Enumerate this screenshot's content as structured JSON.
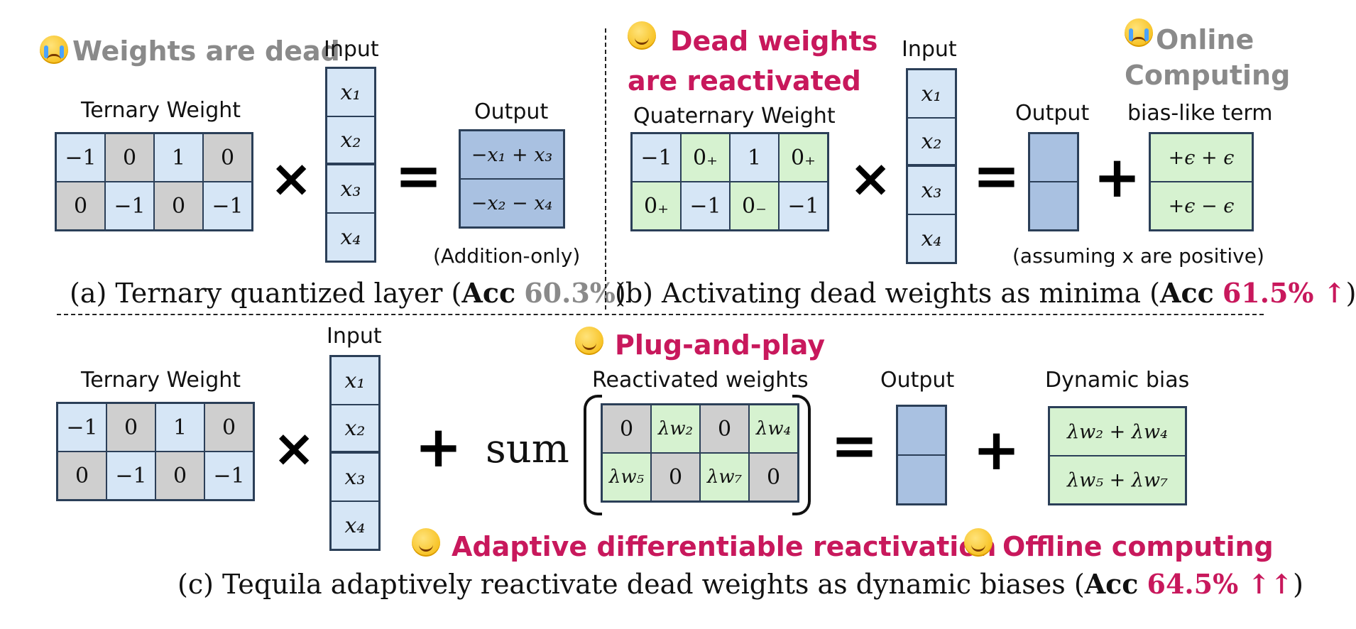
{
  "panel_a": {
    "headline": "Weights are dead",
    "emoji": "crying-face",
    "weight_label": "Ternary Weight",
    "weights": [
      "−1",
      "0",
      "1",
      "0",
      "0",
      "−1",
      "0",
      "−1"
    ],
    "input_label": "Input",
    "inputs": [
      "x₁",
      "x₂",
      "x₃",
      "x₄"
    ],
    "output_label": "Output",
    "outputs": [
      "−x₁ + x₃",
      "−x₂ − x₄"
    ],
    "note": "(Addition-only)",
    "caption_pre": "(a) Ternary quantized layer (",
    "caption_acc": "Acc",
    "caption_val": "60.3%",
    "caption_post": ")"
  },
  "panel_b": {
    "headline_line1": "Dead weights",
    "headline_line2": "are reactivated",
    "emoji": "smiling-face",
    "side_headline_line1": "Online",
    "side_headline_line2": "Computing",
    "side_emoji": "crying-face",
    "weight_label": "Quaternary Weight",
    "weights": [
      "−1",
      "0₊",
      "1",
      "0₊",
      "0₊",
      "−1",
      "0₋",
      "−1"
    ],
    "input_label": "Input",
    "inputs": [
      "x₁",
      "x₂",
      "x₃",
      "x₄"
    ],
    "output_label": "Output",
    "bias_label": "bias-like term",
    "bias_terms": [
      "+ϵ + ϵ",
      "+ϵ − ϵ"
    ],
    "note": "(assuming x are positive)",
    "caption_pre": "(b) Activating dead weights as minima (",
    "caption_acc": "Acc",
    "caption_val": "61.5% ↑",
    "caption_post": ")"
  },
  "panel_c": {
    "weight_label": "Ternary Weight",
    "weights": [
      "−1",
      "0",
      "1",
      "0",
      "0",
      "−1",
      "0",
      "−1"
    ],
    "input_label": "Input",
    "inputs": [
      "x₁",
      "x₂",
      "x₃",
      "x₄"
    ],
    "sum_label": "sum",
    "headline_plug": "Plug-and-play",
    "reactivated_label": "Reactivated weights",
    "reactivated": [
      "0",
      "λw₂",
      "0",
      "λw₄",
      "λw₅",
      "0",
      "λw₇",
      "0"
    ],
    "output_label": "Output",
    "bias_label": "Dynamic bias",
    "bias_terms": [
      "λw₂ + λw₄",
      "λw₅ + λw₇"
    ],
    "headline_adaptive": "Adaptive differentiable reactivation",
    "headline_offline": "Offline computing",
    "caption_pre": "(c) Tequila adaptively reactivate dead weights as dynamic biases (",
    "caption_acc": "Acc",
    "caption_val": "64.5% ↑↑",
    "caption_post": ")"
  },
  "colors": {
    "accent": "#c8185c",
    "gray_text": "#8a8a8a",
    "blue_cell": "#d6e6f6",
    "gray_cell": "#cfcfcf",
    "green_cell": "#d6f2d0",
    "output_cell": "#a9c1e1"
  }
}
